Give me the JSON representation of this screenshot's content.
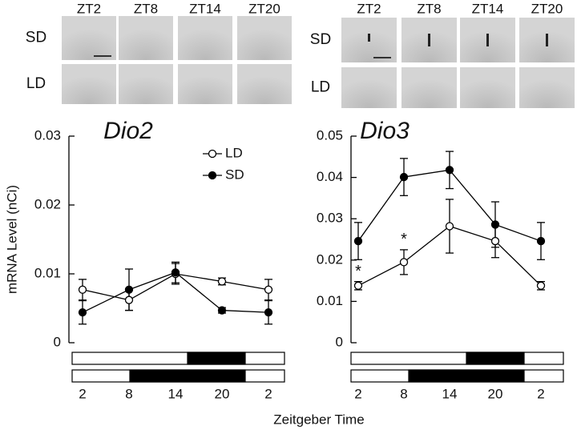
{
  "image_panels": [
    {
      "columns": [
        "ZT2",
        "ZT8",
        "ZT14",
        "ZT20"
      ],
      "rows": [
        "SD",
        "LD"
      ]
    },
    {
      "columns": [
        "ZT2",
        "ZT8",
        "ZT14",
        "ZT20"
      ],
      "rows": [
        "SD",
        "LD"
      ]
    }
  ],
  "x_label": "Zeitgeber Time",
  "chart_data": [
    {
      "type": "line",
      "title": "Dio2",
      "y_label": "mRNA Level (nCi)",
      "categories": [
        "2",
        "8",
        "14",
        "20",
        "2"
      ],
      "ylim": [
        0,
        0.03
      ],
      "yticks": [
        0,
        0.01,
        0.02,
        0.03
      ],
      "legend": "upper right",
      "series": [
        {
          "name": "LD",
          "color": "#000000",
          "marker_fill": "#ffffff",
          "values": [
            0.0077,
            0.0062,
            0.01,
            0.0089,
            0.0077
          ],
          "errors": [
            0.0015,
            0.0015,
            0.0015,
            0.0005,
            0.0015
          ]
        },
        {
          "name": "SD",
          "color": "#000000",
          "marker_fill": "#000000",
          "values": [
            0.0044,
            0.0077,
            0.0102,
            0.0047,
            0.0044
          ],
          "errors": [
            0.0017,
            0.003,
            0.0015,
            0.0004,
            0.0017
          ]
        }
      ]
    },
    {
      "type": "line",
      "title": "Dio3",
      "categories": [
        "2",
        "8",
        "14",
        "20",
        "2"
      ],
      "ylim": [
        0,
        0.05
      ],
      "yticks": [
        0,
        0.01,
        0.02,
        0.03,
        0.04,
        0.05
      ],
      "annotations": [
        "*",
        "*"
      ],
      "series": [
        {
          "name": "LD",
          "color": "#000000",
          "marker_fill": "#ffffff",
          "values": [
            0.0138,
            0.0195,
            0.0282,
            0.0246,
            0.0138
          ],
          "errors": [
            0.001,
            0.003,
            0.0065,
            0.004,
            0.001
          ]
        },
        {
          "name": "SD",
          "color": "#000000",
          "marker_fill": "#000000",
          "values": [
            0.0246,
            0.0401,
            0.0418,
            0.0286,
            0.0246
          ],
          "errors": [
            0.0045,
            0.0045,
            0.0045,
            0.0055,
            0.0045
          ]
        }
      ]
    }
  ]
}
